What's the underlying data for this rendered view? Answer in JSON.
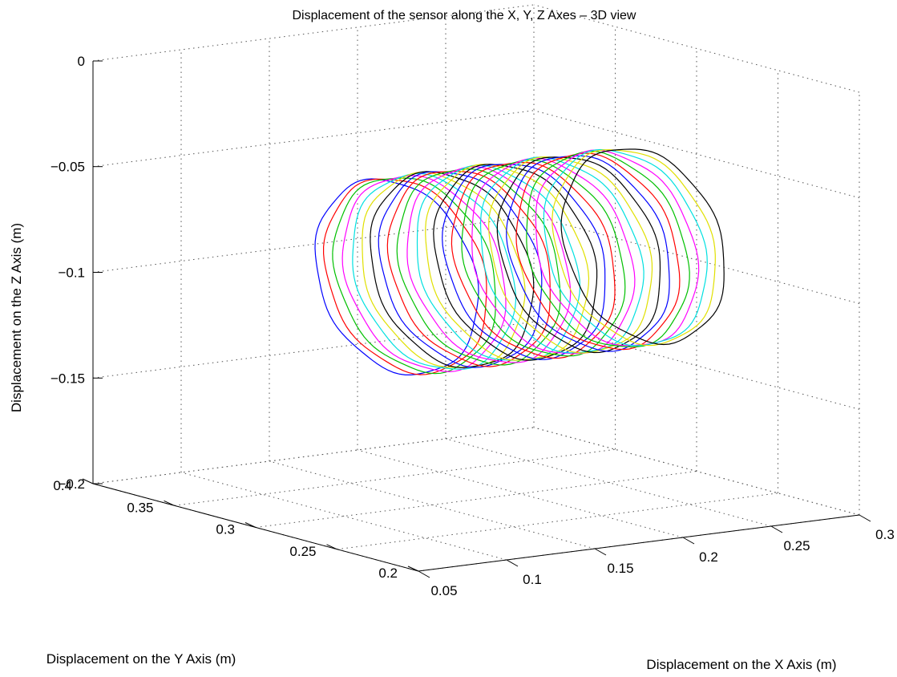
{
  "chart_data": {
    "type": "line3d",
    "title": "Displacement of the sensor along the X, Y, Z Axes – 3D view",
    "xlabel": "Displacement on the X Axis (m)",
    "ylabel": "Displacement on the Y Axis (m)",
    "zlabel": "Displacement on the Z Axis (m)",
    "xlim": [
      0.05,
      0.3
    ],
    "ylim": [
      0.2,
      0.4
    ],
    "zlim": [
      -0.2,
      0
    ],
    "x_ticks": [
      "0.05",
      "0.1",
      "0.15",
      "0.2",
      "0.25",
      "0.3"
    ],
    "y_ticks": [
      "0.2",
      "0.25",
      "0.3",
      "0.35",
      "0.4"
    ],
    "z_ticks": [
      "-0.2",
      "-0.15",
      "-0.1",
      "-0.05",
      "0"
    ],
    "grid": true,
    "loops": {
      "count": 28,
      "x_start": 0.13,
      "x_end": 0.27,
      "center_y": 0.3,
      "center_z": -0.09,
      "radius_y": 0.05,
      "radius_z": 0.045
    },
    "series_colors": [
      "#0000ff",
      "#ff0000",
      "#00c000",
      "#ff00ff",
      "#00e0e0",
      "#e0e000",
      "#000000"
    ]
  }
}
